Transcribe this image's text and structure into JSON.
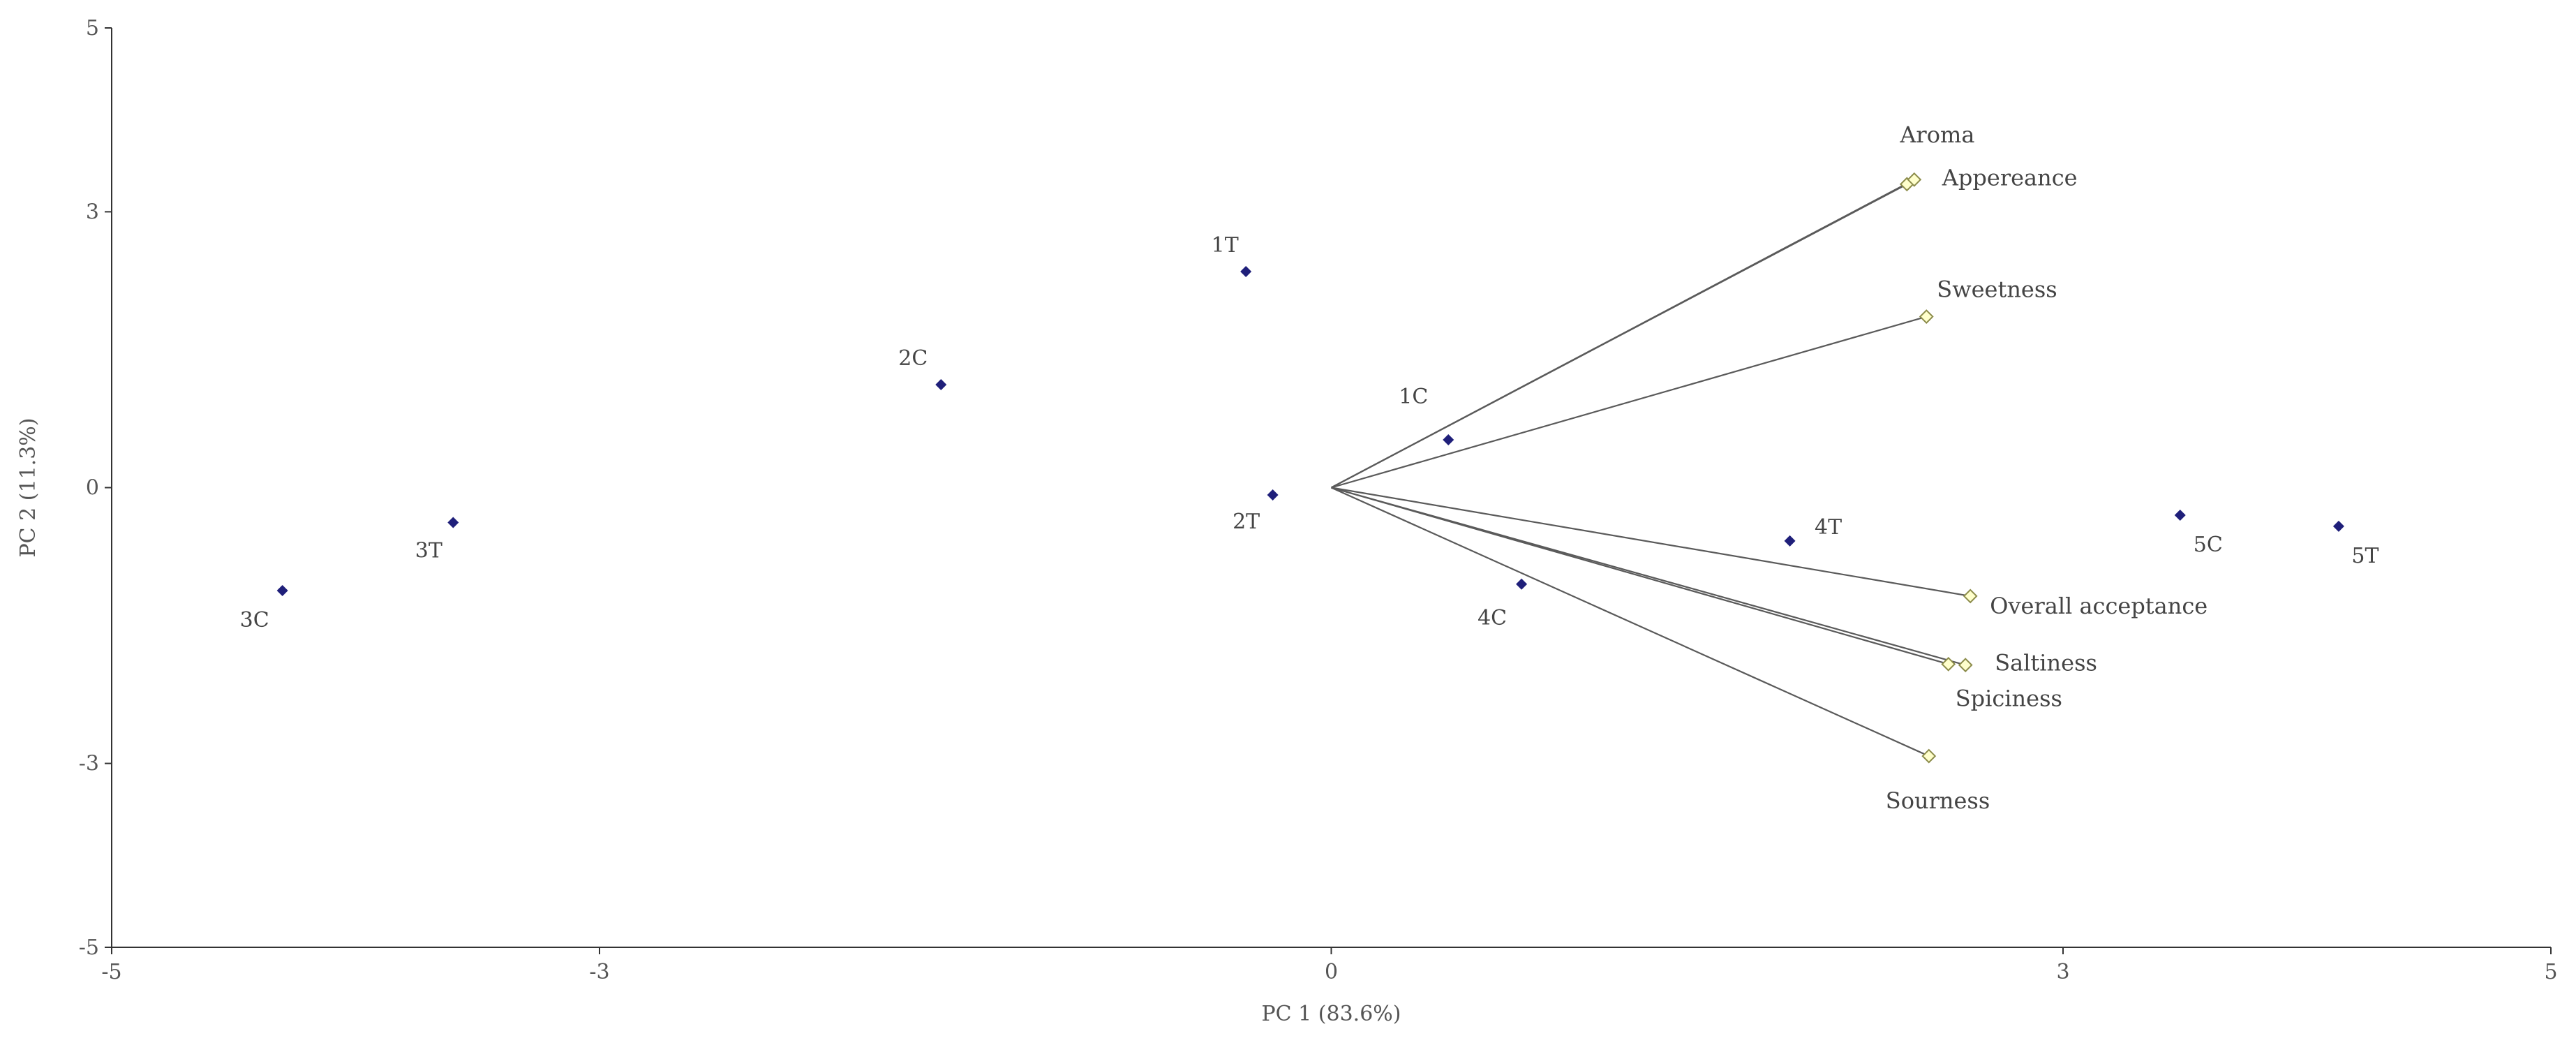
{
  "chart_data": {
    "type": "scatter",
    "title": "",
    "xlabel": "PC 1 (83.6%)",
    "ylabel": "PC 2 (11.3%)",
    "xlim": [
      -5,
      5
    ],
    "ylim": [
      -5,
      5
    ],
    "x_ticks": [
      -5,
      -3,
      0,
      3,
      5
    ],
    "y_ticks": [
      -5,
      -3,
      0,
      3,
      5
    ],
    "grid": false,
    "series": [
      {
        "name": "",
        "kind": "observations",
        "color": "#1f1f7a",
        "points": [
          {
            "label": "1T",
            "x": -0.35,
            "y": 2.35
          },
          {
            "label": "1C",
            "x": 0.48,
            "y": 0.52
          },
          {
            "label": "2C",
            "x": -1.6,
            "y": 1.12
          },
          {
            "label": "2T",
            "x": -0.24,
            "y": -0.08
          },
          {
            "label": "3T",
            "x": -3.6,
            "y": -0.38
          },
          {
            "label": "3C",
            "x": -4.3,
            "y": -1.12
          },
          {
            "label": "4C",
            "x": 0.78,
            "y": -1.05
          },
          {
            "label": "4T",
            "x": 1.88,
            "y": -0.58
          },
          {
            "label": "5C",
            "x": 3.48,
            "y": -0.3
          },
          {
            "label": "5T",
            "x": 4.13,
            "y": -0.42
          }
        ]
      },
      {
        "name": "",
        "kind": "variables",
        "color": "#ffffcc",
        "points": [
          {
            "label": "Aroma",
            "x": 2.36,
            "y": 3.3
          },
          {
            "label": "Appereance",
            "x": 2.39,
            "y": 3.35
          },
          {
            "label": "Sweetness",
            "x": 2.44,
            "y": 1.86
          },
          {
            "label": "Overall acceptance",
            "x": 2.62,
            "y": -1.18
          },
          {
            "label": "Saltiness",
            "x": 2.6,
            "y": -1.93
          },
          {
            "label": "Spiciness",
            "x": 2.53,
            "y": -1.92
          },
          {
            "label": "Sourness",
            "x": 2.45,
            "y": -2.92
          }
        ]
      }
    ]
  }
}
